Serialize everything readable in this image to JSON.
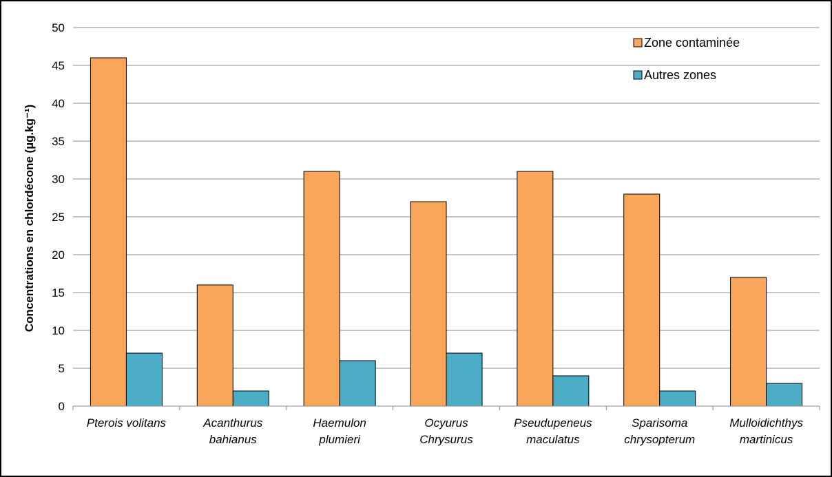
{
  "chart_data": {
    "type": "bar",
    "title": "",
    "xlabel": "",
    "ylabel": "Concentrations en chlordécone (µg.kg⁻¹)",
    "ylim": [
      0,
      50
    ],
    "yticks": [
      0,
      5,
      10,
      15,
      20,
      25,
      30,
      35,
      40,
      45,
      50
    ],
    "grid": true,
    "legend_position": "top-right",
    "categories": [
      [
        "Pterois volitans"
      ],
      [
        "Acanthurus",
        "bahianus"
      ],
      [
        "Haemulon",
        "plumieri"
      ],
      [
        "Ocyurus",
        "Chrysurus"
      ],
      [
        "Pseudupeneus",
        "maculatus"
      ],
      [
        "Sparisoma",
        "chrysopterum"
      ],
      [
        "Mulloidichthys",
        "martinicus"
      ]
    ],
    "series": [
      {
        "name": "Zone contaminée",
        "color": "#F9A65A",
        "values": [
          46,
          16,
          31,
          27,
          31,
          28,
          17
        ]
      },
      {
        "name": "Autres zones",
        "color": "#4BACC6",
        "values": [
          7,
          2,
          6,
          7,
          4,
          2,
          3
        ]
      }
    ]
  }
}
